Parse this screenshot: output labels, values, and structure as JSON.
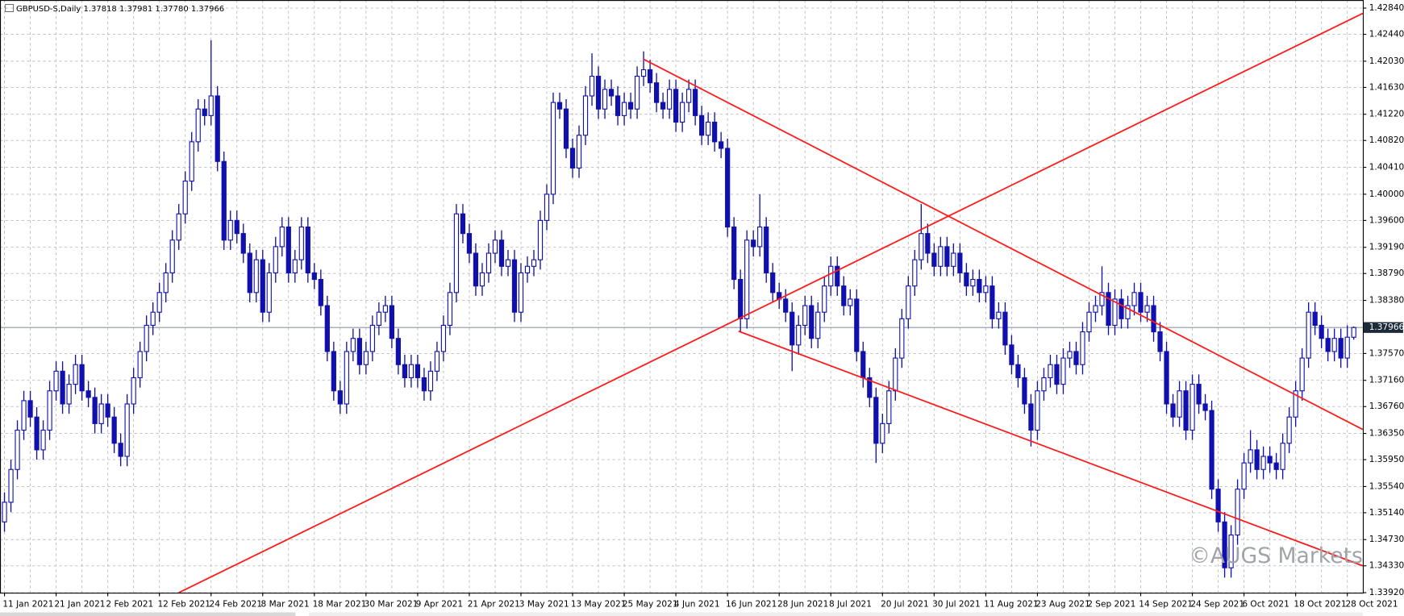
{
  "chart_data": {
    "type": "candlestick",
    "title": "GBPUSD-S,Daily  1.37818 1.37981 1.37780 1.37966",
    "watermark": "©AUGS Markets",
    "color": "#1010b0",
    "grid": true,
    "categories": [
      "11 Jan 2021",
      null,
      null,
      null,
      null,
      null,
      null,
      null,
      "21 Jan 2021",
      null,
      null,
      null,
      null,
      null,
      null,
      null,
      "2 Feb 2021",
      null,
      null,
      null,
      null,
      null,
      null,
      null,
      "12 Feb 2021",
      null,
      null,
      null,
      null,
      null,
      null,
      null,
      "24 Feb 2021",
      null,
      null,
      null,
      null,
      null,
      null,
      null,
      "8 Mar 2021",
      null,
      null,
      null,
      null,
      null,
      null,
      null,
      "18 Mar 2021",
      null,
      null,
      null,
      null,
      null,
      null,
      null,
      "30 Mar 2021",
      null,
      null,
      null,
      null,
      null,
      null,
      null,
      "9 Apr 2021",
      null,
      null,
      null,
      null,
      null,
      null,
      null,
      "21 Apr 2021",
      null,
      null,
      null,
      null,
      null,
      null,
      null,
      "3 May 2021",
      null,
      null,
      null,
      null,
      null,
      null,
      null,
      "13 May 2021",
      null,
      null,
      null,
      null,
      null,
      null,
      null,
      "25 May 2021",
      null,
      null,
      null,
      null,
      null,
      null,
      null,
      "4 Jun 2021",
      null,
      null,
      null,
      null,
      null,
      null,
      null,
      "16 Jun 2021",
      null,
      null,
      null,
      null,
      null,
      null,
      null,
      "28 Jun 2021",
      null,
      null,
      null,
      null,
      null,
      null,
      null,
      "8 Jul 2021",
      null,
      null,
      null,
      null,
      null,
      null,
      null,
      "20 Jul 2021",
      null,
      null,
      null,
      null,
      null,
      null,
      null,
      "30 Jul 2021",
      null,
      null,
      null,
      null,
      null,
      null,
      null,
      "11 Aug 2021",
      null,
      null,
      null,
      null,
      null,
      null,
      null,
      "23 Aug 2021",
      null,
      null,
      null,
      null,
      null,
      null,
      null,
      "2 Sep 2021",
      null,
      null,
      null,
      null,
      null,
      null,
      null,
      "14 Sep 2021",
      null,
      null,
      null,
      null,
      null,
      null,
      null,
      "24 Sep 2021",
      null,
      null,
      null,
      null,
      null,
      null,
      null,
      "6 Oct 2021",
      null,
      null,
      null,
      null,
      null,
      null,
      null,
      "18 Oct 2021",
      null,
      null,
      null,
      null,
      null,
      null,
      null,
      "28 Oct 2021",
      null
    ],
    "open": [
      1.35,
      1.353,
      1.358,
      1.364,
      1.3685,
      1.366,
      1.361,
      1.364,
      1.37,
      1.373,
      1.368,
      1.371,
      1.374,
      1.37,
      1.369,
      1.365,
      1.368,
      1.366,
      1.362,
      1.36,
      1.368,
      1.372,
      1.376,
      1.38,
      1.382,
      1.385,
      1.388,
      1.393,
      1.397,
      1.402,
      1.408,
      1.413,
      1.412,
      1.415,
      1.405,
      1.393,
      1.396,
      1.394,
      1.391,
      1.385,
      1.39,
      1.382,
      1.388,
      1.392,
      1.395,
      1.388,
      1.39,
      1.395,
      1.388,
      1.387,
      1.383,
      1.376,
      1.37,
      1.368,
      1.376,
      1.378,
      1.374,
      1.376,
      1.38,
      1.382,
      1.383,
      1.378,
      1.374,
      1.372,
      1.374,
      1.372,
      1.37,
      1.373,
      1.376,
      1.38,
      1.385,
      1.397,
      1.394,
      1.391,
      1.386,
      1.388,
      1.391,
      1.393,
      1.389,
      1.39,
      1.382,
      1.388,
      1.389,
      1.39,
      1.396,
      1.4,
      1.414,
      1.413,
      1.407,
      1.404,
      1.409,
      1.415,
      1.418,
      1.413,
      1.416,
      1.415,
      1.412,
      1.414,
      1.413,
      1.418,
      1.419,
      1.417,
      1.414,
      1.413,
      1.416,
      1.411,
      1.414,
      1.416,
      1.412,
      1.409,
      1.411,
      1.408,
      1.407,
      1.395,
      1.387,
      1.381,
      1.393,
      1.392,
      1.395,
      1.388,
      1.385,
      1.384,
      1.382,
      1.377,
      1.38,
      1.383,
      1.378,
      1.382,
      1.386,
      1.389,
      1.386,
      1.383,
      1.384,
      1.376,
      1.372,
      1.369,
      1.362,
      1.365,
      1.37,
      1.375,
      1.381,
      1.386,
      1.39,
      1.394,
      1.391,
      1.389,
      1.392,
      1.389,
      1.391,
      1.388,
      1.386,
      1.387,
      1.385,
      1.386,
      1.381,
      1.382,
      1.377,
      1.374,
      1.372,
      1.368,
      1.364,
      1.37,
      1.372,
      1.374,
      1.371,
      1.375,
      1.376,
      1.374,
      1.379,
      1.382,
      1.383,
      1.385,
      1.38,
      1.384,
      1.381,
      1.383,
      1.385,
      1.382,
      1.383,
      1.379,
      1.376,
      1.368,
      1.366,
      1.37,
      1.364,
      1.371,
      1.368,
      1.367,
      1.355,
      1.35,
      1.343,
      1.348,
      1.355,
      1.359,
      1.361,
      1.358,
      1.36,
      1.359,
      1.358,
      1.362,
      1.366,
      1.37,
      1.375,
      1.382,
      1.38,
      1.378,
      1.376,
      1.378,
      1.375,
      1.37818
    ],
    "high": [
      1.3545,
      1.3595,
      1.3655,
      1.37,
      1.37,
      1.3675,
      1.3655,
      1.3715,
      1.3745,
      1.3745,
      1.3725,
      1.3755,
      1.3755,
      1.3715,
      1.3705,
      1.3695,
      1.3695,
      1.3675,
      1.3635,
      1.3695,
      1.3735,
      1.3775,
      1.3815,
      1.3835,
      1.3865,
      1.3895,
      1.3945,
      1.3985,
      1.4035,
      1.4095,
      1.4145,
      1.4145,
      1.4235,
      1.4165,
      1.4065,
      1.3975,
      1.3975,
      1.3955,
      1.3925,
      1.3915,
      1.3915,
      1.3895,
      1.3935,
      1.3965,
      1.3965,
      1.3915,
      1.3965,
      1.3965,
      1.3895,
      1.3885,
      1.3845,
      1.3775,
      1.3715,
      1.3775,
      1.3795,
      1.3795,
      1.3775,
      1.3815,
      1.3835,
      1.3845,
      1.3845,
      1.3795,
      1.3755,
      1.3755,
      1.3755,
      1.3735,
      1.3745,
      1.3775,
      1.3815,
      1.3865,
      1.3985,
      1.3985,
      1.3955,
      1.3925,
      1.3895,
      1.3925,
      1.3945,
      1.3945,
      1.3915,
      1.3915,
      1.3895,
      1.3905,
      1.3915,
      1.3975,
      1.4015,
      1.4155,
      1.4155,
      1.4145,
      1.4085,
      1.4105,
      1.4165,
      1.4215,
      1.4195,
      1.4175,
      1.4175,
      1.4165,
      1.4155,
      1.4155,
      1.4195,
      1.4218,
      1.4205,
      1.4185,
      1.4155,
      1.4175,
      1.4175,
      1.4155,
      1.4175,
      1.4175,
      1.4135,
      1.4125,
      1.4125,
      1.4095,
      1.4085,
      1.3965,
      1.3885,
      1.3945,
      1.3945,
      1.4,
      1.3965,
      1.3895,
      1.3865,
      1.3855,
      1.3835,
      1.3815,
      1.3845,
      1.3845,
      1.3835,
      1.3875,
      1.3905,
      1.3905,
      1.3875,
      1.3855,
      1.3855,
      1.3775,
      1.3735,
      1.3705,
      1.3665,
      1.3715,
      1.3765,
      1.3825,
      1.3875,
      1.3915,
      1.3985,
      1.3955,
      1.3925,
      1.3935,
      1.3935,
      1.3925,
      1.3925,
      1.3895,
      1.3885,
      1.3885,
      1.3875,
      1.3875,
      1.3835,
      1.3835,
      1.3785,
      1.3755,
      1.3735,
      1.3695,
      1.3715,
      1.3735,
      1.3755,
      1.3755,
      1.3765,
      1.3775,
      1.3775,
      1.3805,
      1.3835,
      1.3845,
      1.389,
      1.3865,
      1.3855,
      1.3855,
      1.3845,
      1.3865,
      1.3865,
      1.3845,
      1.3845,
      1.3805,
      1.3775,
      1.3695,
      1.3715,
      1.3715,
      1.3725,
      1.3725,
      1.3695,
      1.3685,
      1.3565,
      1.3515,
      1.3495,
      1.3565,
      1.3605,
      1.364,
      1.3625,
      1.3615,
      1.3615,
      1.3605,
      1.3635,
      1.3675,
      1.3715,
      1.3765,
      1.3835,
      1.3835,
      1.3815,
      1.3795,
      1.3795,
      1.3795,
      1.38,
      1.37981
    ],
    "low": [
      1.3485,
      1.3515,
      1.3565,
      1.3625,
      1.3645,
      1.3595,
      1.3595,
      1.3625,
      1.3685,
      1.3665,
      1.3665,
      1.3695,
      1.3685,
      1.3675,
      1.3635,
      1.3635,
      1.3645,
      1.3605,
      1.3585,
      1.3585,
      1.3665,
      1.3705,
      1.3745,
      1.3785,
      1.3805,
      1.3835,
      1.3865,
      1.3915,
      1.3955,
      1.4005,
      1.4065,
      1.4105,
      1.4105,
      1.4035,
      1.3915,
      1.3915,
      1.3925,
      1.3895,
      1.3835,
      1.3835,
      1.3805,
      1.3805,
      1.3865,
      1.3905,
      1.3865,
      1.3865,
      1.3885,
      1.3865,
      1.3855,
      1.3815,
      1.3745,
      1.3685,
      1.3665,
      1.3665,
      1.3745,
      1.3725,
      1.3725,
      1.3745,
      1.3785,
      1.3805,
      1.3765,
      1.3725,
      1.3705,
      1.3705,
      1.3705,
      1.3685,
      1.3685,
      1.3715,
      1.3745,
      1.3785,
      1.3835,
      1.3925,
      1.3895,
      1.3845,
      1.3845,
      1.3865,
      1.3895,
      1.3875,
      1.3875,
      1.3805,
      1.3805,
      1.3865,
      1.3875,
      1.3885,
      1.3945,
      1.3985,
      1.4115,
      1.4055,
      1.4025,
      1.4025,
      1.4075,
      1.4135,
      1.4115,
      1.4115,
      1.4135,
      1.4105,
      1.4105,
      1.4115,
      1.4115,
      1.4165,
      1.4155,
      1.4125,
      1.4115,
      1.4115,
      1.4095,
      1.4095,
      1.4125,
      1.4105,
      1.4075,
      1.4075,
      1.4065,
      1.4055,
      1.3935,
      1.3855,
      1.379,
      1.3795,
      1.3905,
      1.3905,
      1.3865,
      1.3835,
      1.3825,
      1.3805,
      1.373,
      1.3755,
      1.3785,
      1.3765,
      1.3765,
      1.3805,
      1.3845,
      1.3845,
      1.3815,
      1.3815,
      1.3745,
      1.3705,
      1.3675,
      1.359,
      1.3605,
      1.3635,
      1.3685,
      1.3735,
      1.3795,
      1.3845,
      1.3885,
      1.3895,
      1.3875,
      1.3875,
      1.3875,
      1.3875,
      1.3865,
      1.3845,
      1.3845,
      1.3835,
      1.3835,
      1.3795,
      1.3795,
      1.3755,
      1.3725,
      1.3705,
      1.3665,
      1.3615,
      1.3625,
      1.3685,
      1.3705,
      1.3695,
      1.3695,
      1.3735,
      1.3725,
      1.3725,
      1.3775,
      1.3805,
      1.3815,
      1.3785,
      1.3785,
      1.3795,
      1.3795,
      1.3815,
      1.3805,
      1.3805,
      1.3775,
      1.3745,
      1.3665,
      1.3645,
      1.3645,
      1.3625,
      1.3625,
      1.3665,
      1.3655,
      1.3535,
      1.3485,
      1.3415,
      1.3415,
      1.3465,
      1.3535,
      1.3575,
      1.3565,
      1.3565,
      1.3575,
      1.3565,
      1.3565,
      1.3605,
      1.3645,
      1.3685,
      1.3735,
      1.3785,
      1.3765,
      1.3745,
      1.3745,
      1.3735,
      1.3735,
      1.3778
    ],
    "close": [
      1.353,
      1.358,
      1.364,
      1.3685,
      1.366,
      1.361,
      1.364,
      1.37,
      1.373,
      1.368,
      1.371,
      1.374,
      1.37,
      1.369,
      1.365,
      1.368,
      1.366,
      1.362,
      1.36,
      1.368,
      1.372,
      1.376,
      1.38,
      1.382,
      1.385,
      1.388,
      1.393,
      1.397,
      1.402,
      1.408,
      1.413,
      1.412,
      1.415,
      1.405,
      1.393,
      1.396,
      1.394,
      1.391,
      1.385,
      1.39,
      1.382,
      1.388,
      1.392,
      1.395,
      1.388,
      1.39,
      1.395,
      1.388,
      1.387,
      1.383,
      1.376,
      1.37,
      1.368,
      1.376,
      1.378,
      1.374,
      1.376,
      1.38,
      1.382,
      1.383,
      1.378,
      1.374,
      1.372,
      1.374,
      1.372,
      1.37,
      1.373,
      1.376,
      1.38,
      1.385,
      1.397,
      1.394,
      1.391,
      1.386,
      1.388,
      1.391,
      1.393,
      1.389,
      1.39,
      1.382,
      1.388,
      1.389,
      1.39,
      1.396,
      1.4,
      1.414,
      1.413,
      1.407,
      1.404,
      1.409,
      1.415,
      1.418,
      1.413,
      1.416,
      1.415,
      1.412,
      1.414,
      1.413,
      1.418,
      1.419,
      1.417,
      1.414,
      1.413,
      1.416,
      1.411,
      1.414,
      1.416,
      1.412,
      1.409,
      1.411,
      1.408,
      1.407,
      1.395,
      1.387,
      1.381,
      1.393,
      1.392,
      1.395,
      1.388,
      1.385,
      1.384,
      1.382,
      1.377,
      1.38,
      1.383,
      1.378,
      1.382,
      1.386,
      1.389,
      1.386,
      1.383,
      1.384,
      1.376,
      1.372,
      1.369,
      1.362,
      1.365,
      1.37,
      1.375,
      1.381,
      1.386,
      1.39,
      1.394,
      1.391,
      1.389,
      1.392,
      1.389,
      1.391,
      1.388,
      1.386,
      1.387,
      1.385,
      1.386,
      1.381,
      1.382,
      1.377,
      1.374,
      1.372,
      1.368,
      1.364,
      1.37,
      1.372,
      1.374,
      1.371,
      1.375,
      1.376,
      1.374,
      1.379,
      1.382,
      1.383,
      1.385,
      1.38,
      1.384,
      1.381,
      1.383,
      1.385,
      1.382,
      1.383,
      1.379,
      1.376,
      1.368,
      1.366,
      1.37,
      1.364,
      1.371,
      1.368,
      1.367,
      1.355,
      1.35,
      1.343,
      1.348,
      1.355,
      1.359,
      1.361,
      1.358,
      1.36,
      1.359,
      1.358,
      1.362,
      1.366,
      1.37,
      1.375,
      1.382,
      1.38,
      1.378,
      1.376,
      1.378,
      1.375,
      1.37818,
      1.37966
    ],
    "ylim": [
      1.3392,
      1.4284
    ],
    "yticks": [
      {
        "value": 1.4284,
        "label": "1.42840"
      },
      {
        "value": 1.4244,
        "label": "1.42440"
      },
      {
        "value": 1.4203,
        "label": "1.42030"
      },
      {
        "value": 1.4163,
        "label": "1.41630"
      },
      {
        "value": 1.4122,
        "label": "1.41220"
      },
      {
        "value": 1.4082,
        "label": "1.40820"
      },
      {
        "value": 1.4041,
        "label": "1.40410"
      },
      {
        "value": 1.4,
        "label": "1.40000"
      },
      {
        "value": 1.396,
        "label": "1.39600"
      },
      {
        "value": 1.3919,
        "label": "1.39190"
      },
      {
        "value": 1.3879,
        "label": "1.38790"
      },
      {
        "value": 1.3838,
        "label": "1.38380"
      },
      {
        "value": 1.3757,
        "label": "1.37570"
      },
      {
        "value": 1.3716,
        "label": "1.37160"
      },
      {
        "value": 1.3676,
        "label": "1.36760"
      },
      {
        "value": 1.3635,
        "label": "1.36350"
      },
      {
        "value": 1.3595,
        "label": "1.35950"
      },
      {
        "value": 1.3554,
        "label": "1.35540"
      },
      {
        "value": 1.3514,
        "label": "1.35140"
      },
      {
        "value": 1.3473,
        "label": "1.34730"
      },
      {
        "value": 1.3433,
        "label": "1.34330"
      },
      {
        "value": 1.3392,
        "label": "1.33920"
      }
    ],
    "last_price": {
      "value": 1.37966,
      "label": "1.37966"
    },
    "trendline_color": "#ff1a1a",
    "trendlines": [
      {
        "x": [
          99,
          210.4
        ],
        "y": [
          1.4206,
          1.3641
        ]
      },
      {
        "x": [
          113.7,
          210.4
        ],
        "y": [
          1.3791,
          1.3433
        ]
      },
      {
        "x": [
          27,
          210.4
        ],
        "y": [
          1.3392,
          1.4276
        ]
      }
    ]
  }
}
